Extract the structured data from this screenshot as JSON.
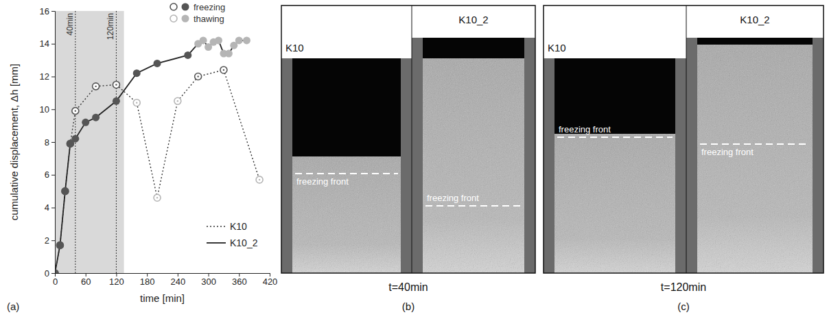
{
  "chart_data": {
    "type": "line",
    "label": "(a)",
    "x_label": "time [min]",
    "y_label": "cumulative displacement, Δh [mm]",
    "xlim": [
      0,
      420
    ],
    "xticks": [
      0,
      60,
      120,
      180,
      240,
      300,
      360,
      420
    ],
    "ylim": [
      0,
      16
    ],
    "yticks": [
      0,
      2,
      4,
      6,
      8,
      10,
      12,
      14,
      16
    ],
    "grid": false,
    "legend": "lower right",
    "shaded_range": [
      0,
      135
    ],
    "annotations": [
      {
        "x": 40,
        "label": "40min"
      },
      {
        "x": 120,
        "label": "120min"
      }
    ],
    "phases": [
      {
        "name": "freezing",
        "color": "#555555"
      },
      {
        "name": "thawing",
        "color": "#b5b5b5"
      }
    ],
    "series": [
      {
        "name": "K10",
        "color": "#333333",
        "line_style": "dotted",
        "marker": "open",
        "x": [
          0,
          10,
          20,
          30,
          40,
          80,
          120,
          160,
          200,
          240,
          280,
          330,
          400
        ],
        "values": [
          0,
          1.7,
          5.0,
          7.9,
          9.9,
          11.4,
          11.5,
          10.4,
          4.6,
          10.5,
          12.0,
          12.4,
          5.7
        ],
        "phase": [
          "freezing",
          "freezing",
          "freezing",
          "freezing",
          "freezing",
          "freezing",
          "freezing",
          "thawing",
          "thawing",
          "thawing",
          "freezing",
          "freezing",
          "thawing"
        ]
      },
      {
        "name": "K10_2",
        "color": "#222222",
        "line_style": "solid",
        "marker": "filled",
        "x": [
          0,
          10,
          20,
          30,
          40,
          60,
          80,
          120,
          160,
          200,
          260,
          280,
          290,
          300,
          310,
          320,
          330,
          340,
          350,
          360,
          375
        ],
        "values": [
          0,
          1.7,
          5.0,
          7.9,
          8.2,
          9.2,
          9.5,
          10.5,
          12.2,
          12.8,
          13.3,
          14.0,
          14.2,
          13.8,
          14.1,
          14.2,
          13.4,
          13.4,
          13.9,
          14.2,
          14.2
        ],
        "phase": [
          "freezing",
          "freezing",
          "freezing",
          "freezing",
          "freezing",
          "freezing",
          "freezing",
          "freezing",
          "freezing",
          "freezing",
          "freezing",
          "thawing",
          "thawing",
          "thawing",
          "thawing",
          "thawing",
          "thawing",
          "thawing",
          "thawing",
          "thawing",
          "thawing"
        ]
      }
    ]
  },
  "images": [
    {
      "label": "(b)",
      "caption": "t=40min",
      "samples": [
        {
          "name": "K10",
          "annotation": "freezing front"
        },
        {
          "name": "K10_2",
          "annotation": "freezing front"
        }
      ]
    },
    {
      "label": "(c)",
      "caption": "t=120min",
      "samples": [
        {
          "name": "K10",
          "annotation": "freezing front"
        },
        {
          "name": "K10_2",
          "annotation": "freezing front"
        }
      ]
    }
  ]
}
